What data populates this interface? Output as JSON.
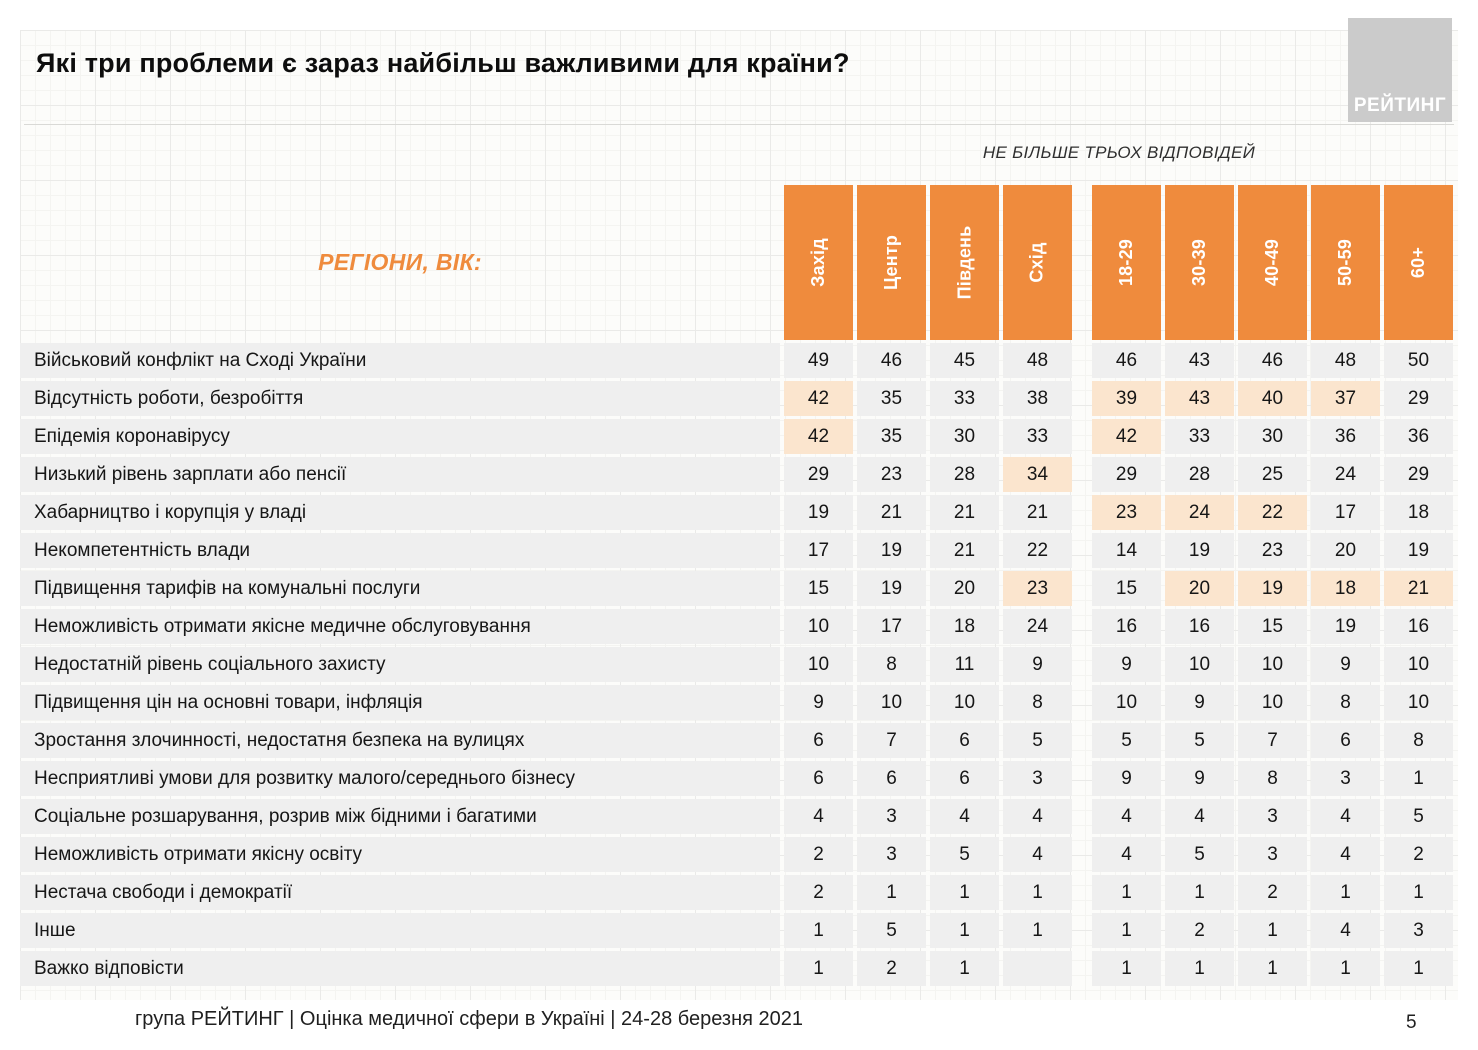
{
  "slide": {
    "title": "Які три проблеми є зараз найбільш важливими для країни?",
    "logo_text": "РЕЙТИНГ",
    "note": "НЕ БІЛЬШЕ ТРЬОХ ВІДПОВІДЕЙ",
    "regions_label": "РЕГІОНИ, ВІК:",
    "footer": "група РЕЙТИНГ  |  Оцінка медичної сфери в Україні  | 24-28 березня 2021",
    "page_number": "5"
  },
  "colors": {
    "accent_orange": "#EF8B3D",
    "highlight_peach": "#FBE5CE",
    "cell_gray": "#EFEFEF",
    "logo_gray": "#CBCBCB"
  },
  "chart_data": {
    "type": "table",
    "title": "Які три проблеми є зараз найбільш важливими для країни?",
    "note": "НЕ БІЛЬШЕ ТРЬОХ ВІДПОВІДЕЙ",
    "column_groups": [
      {
        "name": "регіони",
        "columns": [
          "Захід",
          "Центр",
          "Південь",
          "Схід"
        ]
      },
      {
        "name": "вік",
        "columns": [
          "18-29",
          "30-39",
          "40-49",
          "50-59",
          "60+"
        ]
      }
    ],
    "rows": [
      {
        "label": "Військовий конфлікт на Сході України",
        "values": [
          49,
          46,
          45,
          48,
          46,
          43,
          46,
          48,
          50
        ],
        "highlighted": []
      },
      {
        "label": "Відсутність роботи, безробіття",
        "values": [
          42,
          35,
          33,
          38,
          39,
          43,
          40,
          37,
          29
        ],
        "highlighted": [
          0,
          4,
          5,
          6,
          7
        ]
      },
      {
        "label": "Епідемія коронавірусу",
        "values": [
          42,
          35,
          30,
          33,
          42,
          33,
          30,
          36,
          36
        ],
        "highlighted": [
          0,
          4
        ]
      },
      {
        "label": "Низький рівень зарплати або пенсії",
        "values": [
          29,
          23,
          28,
          34,
          29,
          28,
          25,
          24,
          29
        ],
        "highlighted": [
          3
        ]
      },
      {
        "label": "Хабарництво і корупція у владі",
        "values": [
          19,
          21,
          21,
          21,
          23,
          24,
          22,
          17,
          18
        ],
        "highlighted": [
          4,
          5,
          6
        ]
      },
      {
        "label": "Некомпетентність влади",
        "values": [
          17,
          19,
          21,
          22,
          14,
          19,
          23,
          20,
          19
        ],
        "highlighted": []
      },
      {
        "label": "Підвищення тарифів на комунальні послуги",
        "values": [
          15,
          19,
          20,
          23,
          15,
          20,
          19,
          18,
          21
        ],
        "highlighted": [
          3,
          5,
          6,
          7,
          8
        ]
      },
      {
        "label": "Неможливість отримати якісне медичне обслуговування",
        "values": [
          10,
          17,
          18,
          24,
          16,
          16,
          15,
          19,
          16
        ],
        "highlighted": []
      },
      {
        "label": "Недостатній рівень соціального захисту",
        "values": [
          10,
          8,
          11,
          9,
          9,
          10,
          10,
          9,
          10
        ],
        "highlighted": []
      },
      {
        "label": "Підвищення цін на основні товари, інфляція",
        "values": [
          9,
          10,
          10,
          8,
          10,
          9,
          10,
          8,
          10
        ],
        "highlighted": []
      },
      {
        "label": "Зростання злочинності, недостатня безпека на вулицях",
        "values": [
          6,
          7,
          6,
          5,
          5,
          5,
          7,
          6,
          8
        ],
        "highlighted": []
      },
      {
        "label": "Несприятливі умови для розвитку малого/середнього бізнесу",
        "values": [
          6,
          6,
          6,
          3,
          9,
          9,
          8,
          3,
          1
        ],
        "highlighted": []
      },
      {
        "label": "Соціальне розшарування, розрив між бідними і багатими",
        "values": [
          4,
          3,
          4,
          4,
          4,
          4,
          3,
          4,
          5
        ],
        "highlighted": []
      },
      {
        "label": "Неможливість отримати якісну освіту",
        "values": [
          2,
          3,
          5,
          4,
          4,
          5,
          3,
          4,
          2
        ],
        "highlighted": []
      },
      {
        "label": "Нестача свободи і демократії",
        "values": [
          2,
          1,
          1,
          1,
          1,
          1,
          2,
          1,
          1
        ],
        "highlighted": []
      },
      {
        "label": "Інше",
        "values": [
          1,
          5,
          1,
          1,
          1,
          2,
          1,
          4,
          3
        ],
        "highlighted": []
      },
      {
        "label": "Важко відповісти",
        "values": [
          1,
          2,
          1,
          null,
          1,
          1,
          1,
          1,
          1
        ],
        "highlighted": []
      }
    ]
  }
}
